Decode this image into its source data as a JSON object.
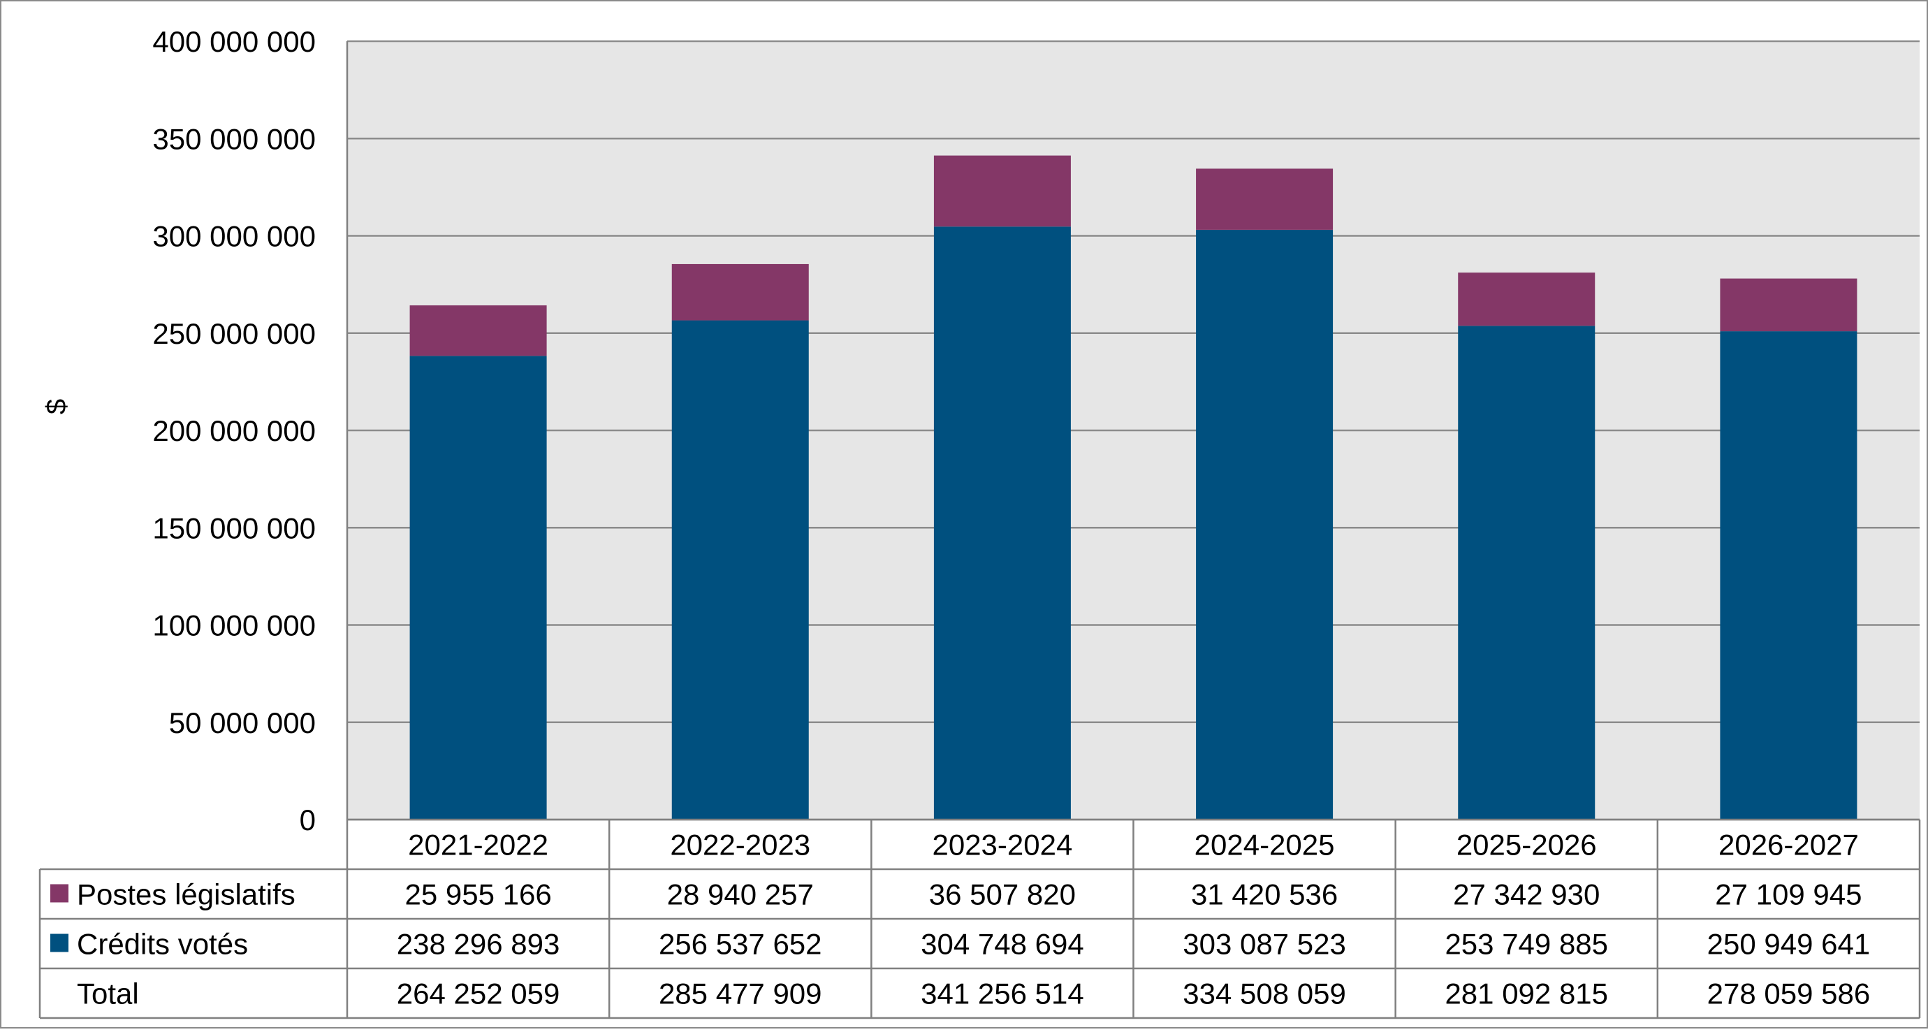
{
  "chart_data": {
    "type": "bar",
    "stacked": true,
    "title": "",
    "xlabel": "",
    "ylabel": "$",
    "ylim": [
      0,
      400000000
    ],
    "yticks": [
      0,
      50000000,
      100000000,
      150000000,
      200000000,
      250000000,
      300000000,
      350000000,
      400000000
    ],
    "ytick_labels": [
      "0",
      "50 000 000",
      "100 000 000",
      "150 000 000",
      "200 000 000",
      "250 000 000",
      "300 000 000",
      "350 000 000",
      "400 000 000"
    ],
    "grid": true,
    "legend": "data-table",
    "categories": [
      "2021-2022",
      "2022-2023",
      "2023-2024",
      "2024-2025",
      "2025-2026",
      "2026-2027"
    ],
    "series": [
      {
        "name": "Crédits votés",
        "color": "#00507F",
        "values": [
          238296893,
          256537652,
          304748694,
          303087523,
          253749885,
          250949641
        ],
        "labels": [
          "238 296 893",
          "256 537 652",
          "304 748 694",
          "303 087 523",
          "253 749 885",
          "250 949 641"
        ]
      },
      {
        "name": "Postes législatifs",
        "color": "#843767",
        "values": [
          25955166,
          28940257,
          36507820,
          31420536,
          27342930,
          27109945
        ],
        "labels": [
          "25 955 166",
          "28 940 257",
          "36 507 820",
          "31 420 536",
          "27 342 930",
          "27 109 945"
        ]
      }
    ],
    "table": {
      "row_order": [
        "Postes législatifs",
        "Crédits votés",
        "Total"
      ],
      "total_label": "Total",
      "totals": [
        "264 252 059",
        "285 477 909",
        "341 256 514",
        "334 508 059",
        "281 092 815",
        "278 059 586"
      ]
    },
    "colors": {
      "plot_background": "#E6E6E6",
      "gridline": "#8C8C8C",
      "border": "#808080"
    }
  }
}
